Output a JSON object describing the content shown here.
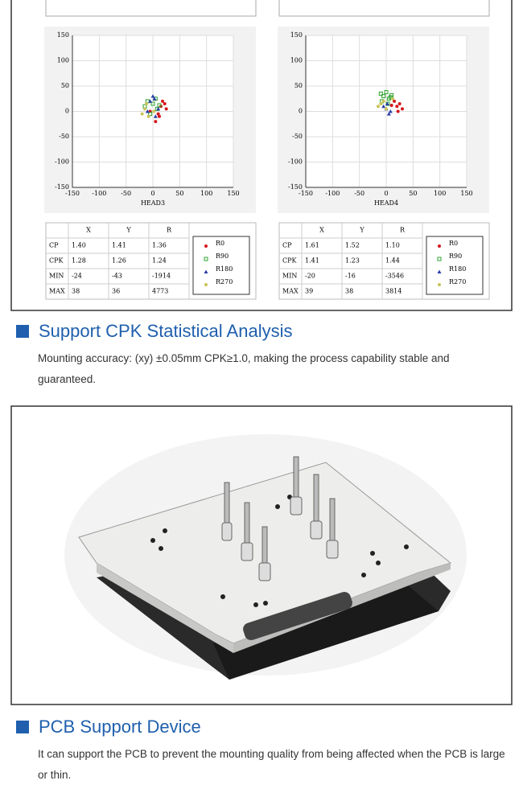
{
  "chart_data": [
    {
      "type": "scatter",
      "x_label": "HEAD3",
      "xlim": [
        -150,
        150
      ],
      "ylim": [
        -150,
        150
      ],
      "xticks": [
        -150,
        -100,
        -50,
        0,
        50,
        100,
        150
      ],
      "yticks": [
        -150,
        -100,
        -50,
        0,
        50,
        100,
        150
      ],
      "grid": true,
      "series": [
        {
          "name": "R0",
          "color": "#d4161c",
          "marker": "circle",
          "x": [
            15,
            22,
            10,
            25,
            5,
            18,
            -5,
            12
          ],
          "values": [
            10,
            15,
            -5,
            5,
            -20,
            20,
            0,
            -10
          ]
        },
        {
          "name": "R90",
          "color": "#2ca02c",
          "marker": "square",
          "x": [
            -10,
            0,
            -15,
            5,
            8,
            -5,
            12
          ],
          "values": [
            20,
            15,
            10,
            25,
            5,
            -5,
            12
          ]
        },
        {
          "name": "R180",
          "color": "#2b3fa8",
          "marker": "triangle",
          "x": [
            0,
            -5,
            5,
            10,
            -10,
            3
          ],
          "values": [
            30,
            20,
            -10,
            5,
            0,
            25
          ]
        },
        {
          "name": "R270",
          "color": "#c8c45a",
          "marker": "circle",
          "x": [
            -15,
            -20,
            -8,
            2,
            -12
          ],
          "values": [
            5,
            -5,
            -10,
            0,
            15
          ]
        }
      ]
    },
    {
      "type": "scatter",
      "x_label": "HEAD4",
      "xlim": [
        -150,
        150
      ],
      "ylim": [
        -150,
        150
      ],
      "xticks": [
        -150,
        -100,
        -50,
        0,
        50,
        100,
        150
      ],
      "yticks": [
        -150,
        -100,
        -50,
        0,
        50,
        100,
        150
      ],
      "grid": true,
      "series": [
        {
          "name": "R0",
          "color": "#d4161c",
          "marker": "circle",
          "x": [
            20,
            25,
            30,
            15,
            22,
            10
          ],
          "values": [
            10,
            15,
            5,
            20,
            0,
            12
          ]
        },
        {
          "name": "R90",
          "color": "#2ca02c",
          "marker": "square",
          "x": [
            -10,
            -5,
            0,
            5,
            10,
            -8,
            3,
            8
          ],
          "values": [
            35,
            30,
            38,
            25,
            32,
            20,
            15,
            28
          ]
        },
        {
          "name": "R180",
          "color": "#2b3fa8",
          "marker": "triangle",
          "x": [
            0,
            5,
            -5,
            8,
            2
          ],
          "values": [
            5,
            -5,
            10,
            0,
            15
          ]
        },
        {
          "name": "R270",
          "color": "#c8c45a",
          "marker": "circle",
          "x": [
            -10,
            -15,
            -5,
            0,
            12
          ],
          "values": [
            15,
            10,
            20,
            5,
            25
          ]
        }
      ]
    }
  ],
  "tables": [
    {
      "header": [
        "X",
        "Y",
        "R"
      ],
      "rows": [
        [
          "CP",
          "1.40",
          "1.41",
          "1.36"
        ],
        [
          "CPK",
          "1.28",
          "1.26",
          "1.24"
        ],
        [
          "MIN",
          "-24",
          "-43",
          "-1914"
        ],
        [
          "MAX",
          "38",
          "36",
          "4773"
        ]
      ]
    },
    {
      "header": [
        "X",
        "Y",
        "R"
      ],
      "rows": [
        [
          "CP",
          "1.61",
          "1.52",
          "1.10"
        ],
        [
          "CPK",
          "1.41",
          "1.23",
          "1.44"
        ],
        [
          "MIN",
          "-20",
          "-16",
          "-3546"
        ],
        [
          "MAX",
          "39",
          "38",
          "3814"
        ]
      ]
    }
  ],
  "sections": [
    {
      "title": "Support CPK Statistical Analysis",
      "text": "Mounting accuracy: (xy) ±0.05mm CPK≥1.0, making the process capability stable and guaranteed."
    },
    {
      "title": "PCB Support Device",
      "text": "It can support the PCB to prevent the mounting quality from being affected when the PCB is large or thin."
    }
  ]
}
